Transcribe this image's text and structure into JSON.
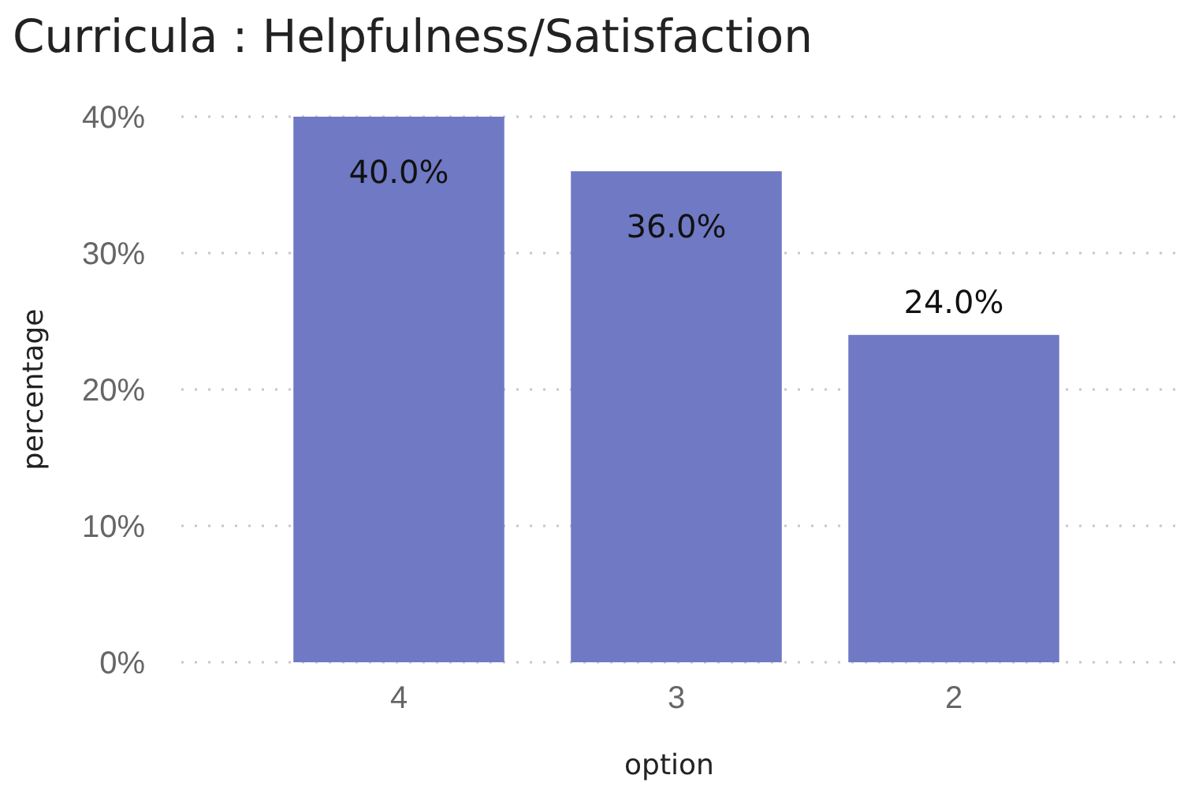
{
  "chart_data": {
    "type": "bar",
    "title": "Curricula : Helpfulness/Satisfaction",
    "xlabel": "option",
    "ylabel": "percentage",
    "categories": [
      "4",
      "3",
      "2"
    ],
    "values": [
      40,
      36,
      24
    ],
    "value_labels": [
      "40.0%",
      "36.0%",
      "24.0%"
    ],
    "color": "#7079c4",
    "ylim": [
      0,
      40
    ],
    "yticks": [
      {
        "value": 0,
        "label": "0%"
      },
      {
        "value": 10,
        "label": "10%"
      },
      {
        "value": 20,
        "label": "20%"
      },
      {
        "value": 30,
        "label": "30%"
      },
      {
        "value": 40,
        "label": "40%"
      }
    ],
    "grid": "y"
  }
}
